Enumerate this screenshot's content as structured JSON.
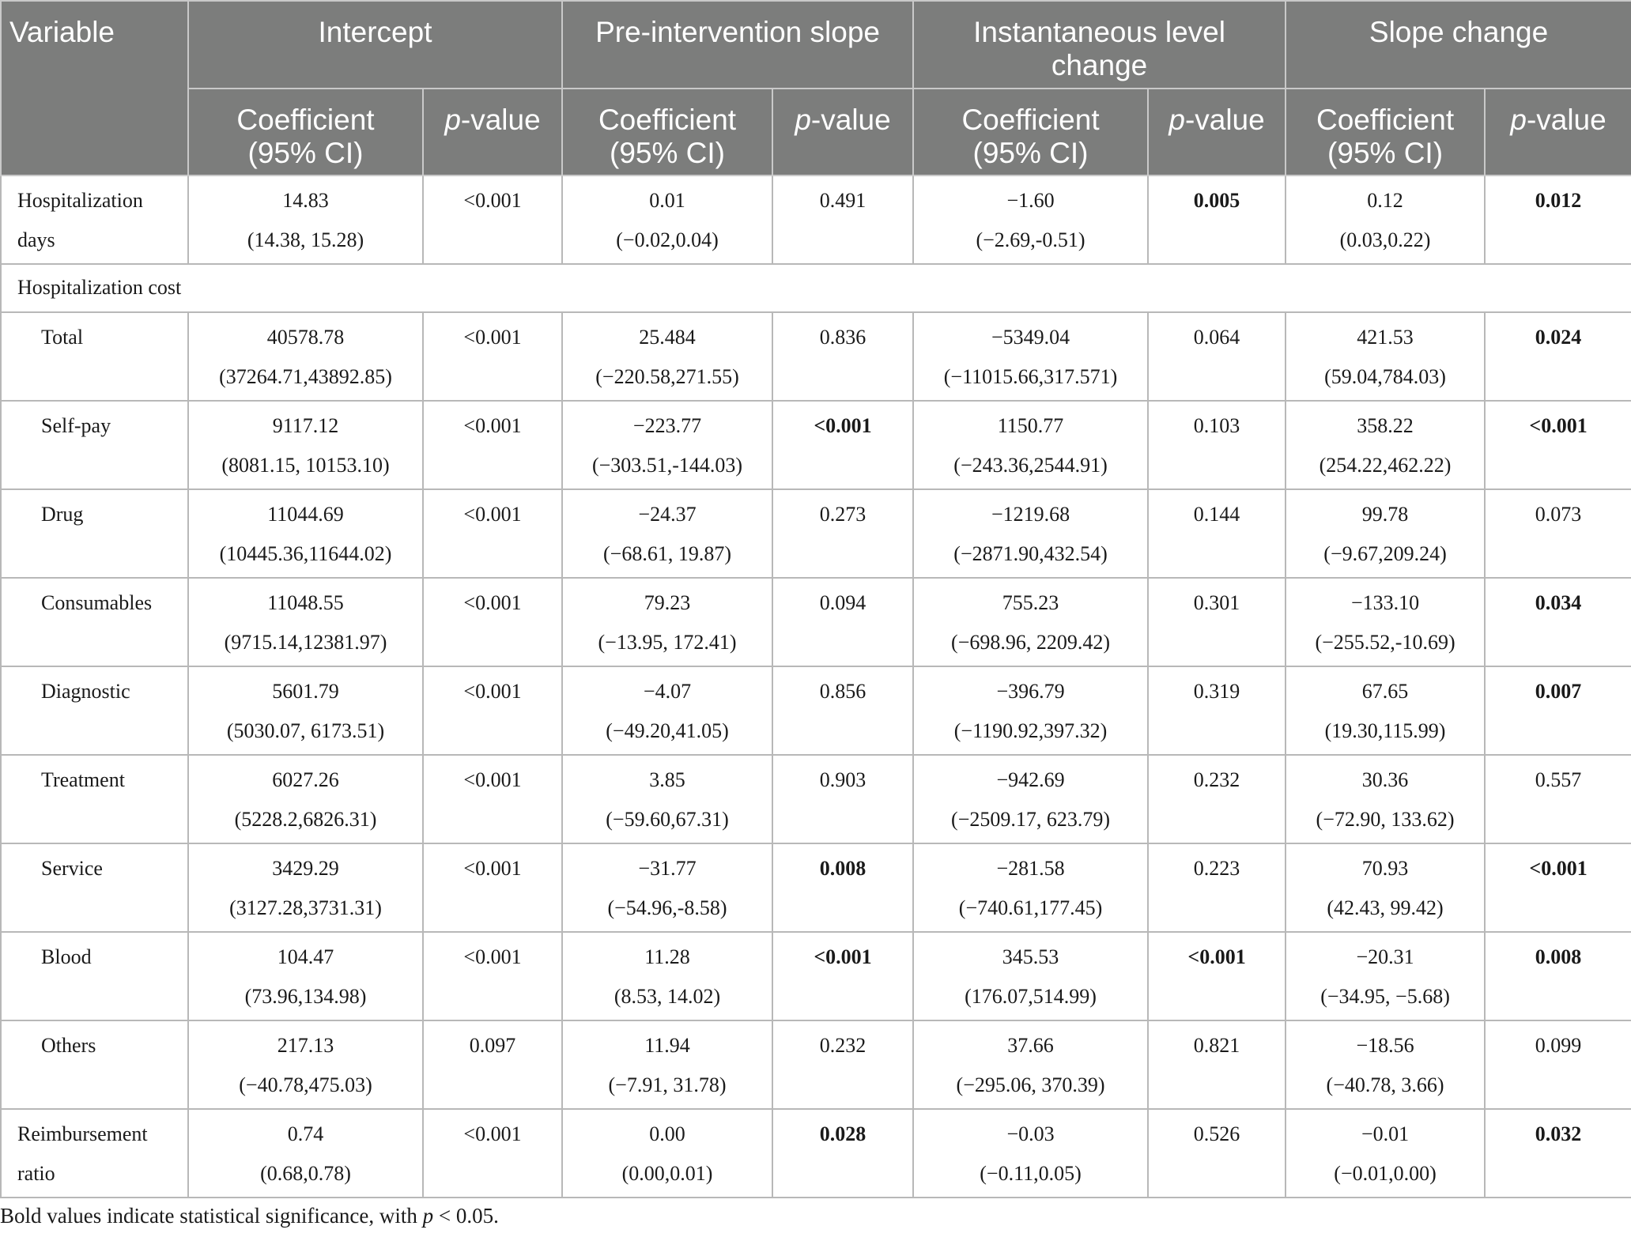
{
  "headers": {
    "variable": "Variable",
    "groups": [
      "Intercept",
      "Pre-intervention slope",
      "Instantaneous level change",
      "Slope change"
    ],
    "coef_l1": "Coefficient",
    "coef_l2": "(95% CI)",
    "p_italic": "p",
    "p_rest": "-value"
  },
  "rows": [
    {
      "label": [
        "Hospitalization",
        "days"
      ],
      "sub": false,
      "cells": [
        [
          "14.83",
          "(14.38, 15.28)"
        ],
        [
          "<0.001"
        ],
        [
          "0.01",
          "(−0.02,0.04)"
        ],
        [
          "0.491"
        ],
        [
          "−1.60",
          "(−2.69,-0.51)"
        ],
        [
          "0.005"
        ],
        [
          "0.12",
          "(0.03,0.22)"
        ],
        [
          "0.012"
        ]
      ],
      "bold": [
        false,
        false,
        false,
        false,
        false,
        true,
        false,
        true
      ]
    },
    {
      "group": "Hospitalization cost"
    },
    {
      "label": [
        "Total"
      ],
      "sub": true,
      "cells": [
        [
          "40578.78",
          "(37264.71,43892.85)"
        ],
        [
          "<0.001"
        ],
        [
          "25.484",
          "(−220.58,271.55)"
        ],
        [
          "0.836"
        ],
        [
          "−5349.04",
          "(−11015.66,317.571)"
        ],
        [
          "0.064"
        ],
        [
          "421.53",
          "(59.04,784.03)"
        ],
        [
          "0.024"
        ]
      ],
      "bold": [
        false,
        false,
        false,
        false,
        false,
        false,
        false,
        true
      ]
    },
    {
      "label": [
        "Self-pay"
      ],
      "sub": true,
      "cells": [
        [
          "9117.12",
          "(8081.15, 10153.10)"
        ],
        [
          "<0.001"
        ],
        [
          "−223.77",
          "(−303.51,-144.03)"
        ],
        [
          "<0.001"
        ],
        [
          "1150.77",
          "(−243.36,2544.91)"
        ],
        [
          "0.103"
        ],
        [
          "358.22",
          "(254.22,462.22)"
        ],
        [
          "<0.001"
        ]
      ],
      "bold": [
        false,
        false,
        false,
        true,
        false,
        false,
        false,
        true
      ]
    },
    {
      "label": [
        "Drug"
      ],
      "sub": true,
      "cells": [
        [
          "11044.69",
          "(10445.36,11644.02)"
        ],
        [
          "<0.001"
        ],
        [
          "−24.37",
          "(−68.61, 19.87)"
        ],
        [
          "0.273"
        ],
        [
          "−1219.68",
          "(−2871.90,432.54)"
        ],
        [
          "0.144"
        ],
        [
          "99.78",
          "(−9.67,209.24)"
        ],
        [
          "0.073"
        ]
      ],
      "bold": [
        false,
        false,
        false,
        false,
        false,
        false,
        false,
        false
      ]
    },
    {
      "label": [
        "Consumables"
      ],
      "sub": true,
      "cells": [
        [
          "11048.55",
          "(9715.14,12381.97)"
        ],
        [
          "<0.001"
        ],
        [
          "79.23",
          "(−13.95, 172.41)"
        ],
        [
          "0.094"
        ],
        [
          "755.23",
          "(−698.96, 2209.42)"
        ],
        [
          "0.301"
        ],
        [
          "−133.10",
          "(−255.52,-10.69)"
        ],
        [
          "0.034"
        ]
      ],
      "bold": [
        false,
        false,
        false,
        false,
        false,
        false,
        false,
        true
      ]
    },
    {
      "label": [
        "Diagnostic"
      ],
      "sub": true,
      "cells": [
        [
          "5601.79",
          "(5030.07, 6173.51)"
        ],
        [
          "<0.001"
        ],
        [
          "−4.07",
          "(−49.20,41.05)"
        ],
        [
          "0.856"
        ],
        [
          "−396.79",
          "(−1190.92,397.32)"
        ],
        [
          "0.319"
        ],
        [
          "67.65",
          "(19.30,115.99)"
        ],
        [
          "0.007"
        ]
      ],
      "bold": [
        false,
        false,
        false,
        false,
        false,
        false,
        false,
        true
      ]
    },
    {
      "label": [
        "Treatment"
      ],
      "sub": true,
      "cells": [
        [
          "6027.26",
          "(5228.2,6826.31)"
        ],
        [
          "<0.001"
        ],
        [
          "3.85",
          "(−59.60,67.31)"
        ],
        [
          "0.903"
        ],
        [
          "−942.69",
          "(−2509.17, 623.79)"
        ],
        [
          "0.232"
        ],
        [
          "30.36",
          "(−72.90, 133.62)"
        ],
        [
          "0.557"
        ]
      ],
      "bold": [
        false,
        false,
        false,
        false,
        false,
        false,
        false,
        false
      ]
    },
    {
      "label": [
        "Service"
      ],
      "sub": true,
      "cells": [
        [
          "3429.29",
          "(3127.28,3731.31)"
        ],
        [
          "<0.001"
        ],
        [
          "−31.77",
          "(−54.96,-8.58)"
        ],
        [
          "0.008"
        ],
        [
          "−281.58",
          "(−740.61,177.45)"
        ],
        [
          "0.223"
        ],
        [
          "70.93",
          "(42.43, 99.42)"
        ],
        [
          "<0.001"
        ]
      ],
      "bold": [
        false,
        false,
        false,
        true,
        false,
        false,
        false,
        true
      ]
    },
    {
      "label": [
        "Blood"
      ],
      "sub": true,
      "cells": [
        [
          "104.47",
          "(73.96,134.98)"
        ],
        [
          "<0.001"
        ],
        [
          "11.28",
          "(8.53, 14.02)"
        ],
        [
          "<0.001"
        ],
        [
          "345.53",
          "(176.07,514.99)"
        ],
        [
          "<0.001"
        ],
        [
          "−20.31",
          "(−34.95, −5.68)"
        ],
        [
          "0.008"
        ]
      ],
      "bold": [
        false,
        false,
        false,
        true,
        false,
        true,
        false,
        true
      ]
    },
    {
      "label": [
        "Others"
      ],
      "sub": true,
      "cells": [
        [
          "217.13",
          "(−40.78,475.03)"
        ],
        [
          "0.097"
        ],
        [
          "11.94",
          "(−7.91, 31.78)"
        ],
        [
          "0.232"
        ],
        [
          "37.66",
          "(−295.06, 370.39)"
        ],
        [
          "0.821"
        ],
        [
          "−18.56",
          "(−40.78, 3.66)"
        ],
        [
          "0.099"
        ]
      ],
      "bold": [
        false,
        false,
        false,
        false,
        false,
        false,
        false,
        false
      ]
    },
    {
      "label": [
        "Reimbursement",
        "ratio"
      ],
      "sub": false,
      "cells": [
        [
          "0.74",
          "(0.68,0.78)"
        ],
        [
          "<0.001"
        ],
        [
          "0.00",
          "(0.00,0.01)"
        ],
        [
          "0.028"
        ],
        [
          "−0.03",
          "(−0.11,0.05)"
        ],
        [
          "0.526"
        ],
        [
          "−0.01",
          "(−0.01,0.00)"
        ],
        [
          "0.032"
        ]
      ],
      "bold": [
        false,
        false,
        false,
        true,
        false,
        false,
        false,
        true
      ]
    }
  ],
  "footnote": {
    "before": "Bold values indicate statistical significance, with ",
    "italic": "p",
    "after": " < 0.05."
  }
}
